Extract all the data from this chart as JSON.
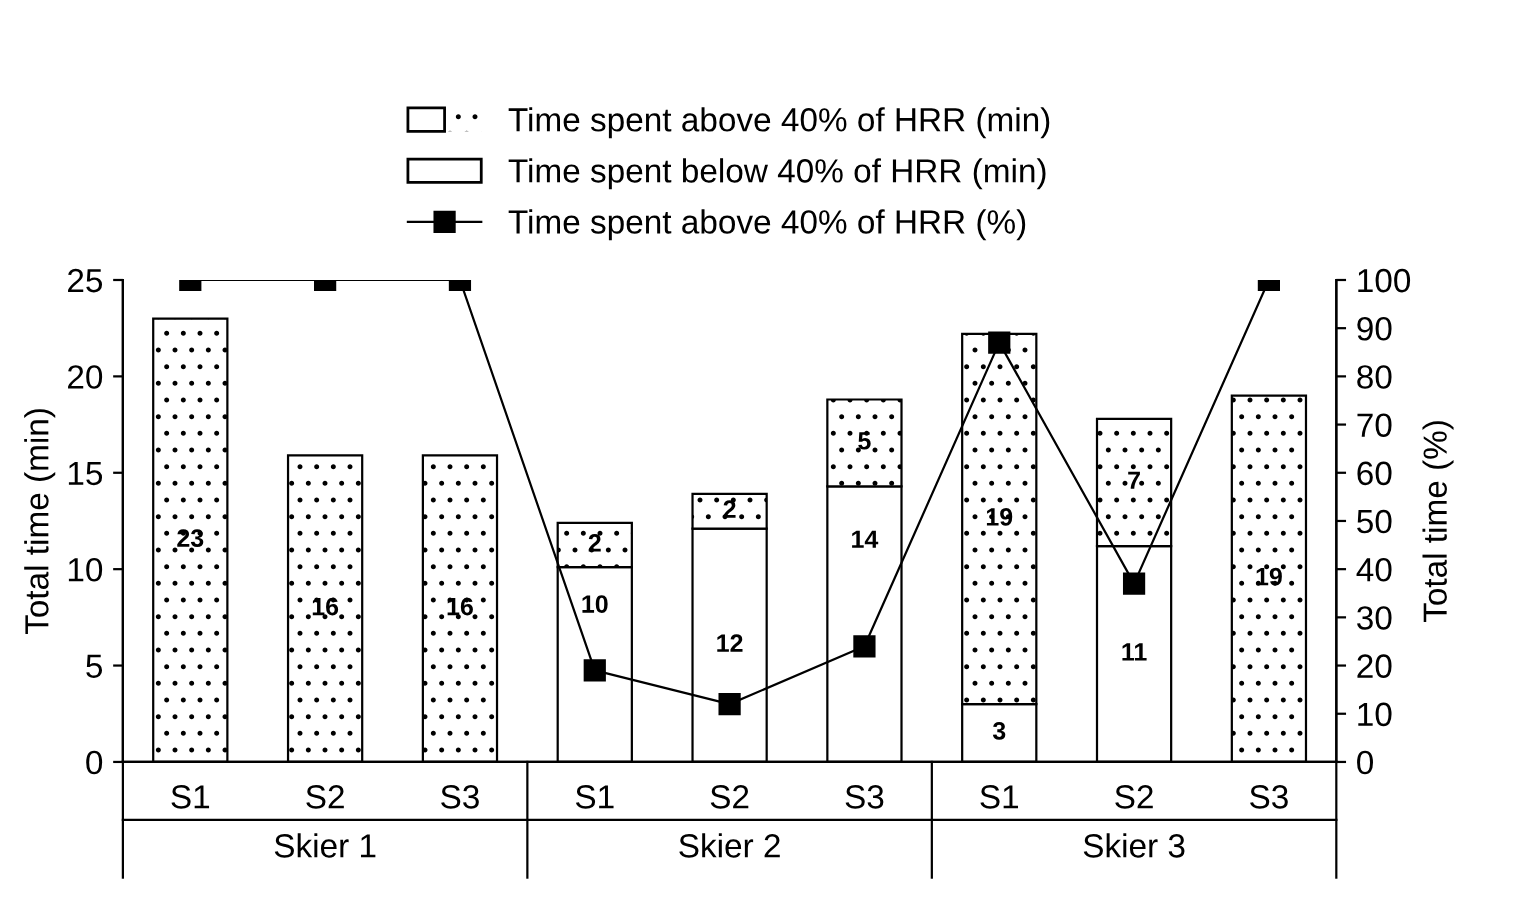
{
  "chart_data": {
    "type": "bar",
    "stacked": true,
    "categories": [
      "S1",
      "S2",
      "S3",
      "S1",
      "S2",
      "S3",
      "S1",
      "S2",
      "S3"
    ],
    "series": [
      {
        "name": "Time spent below 40% of HRR (min)",
        "color": "#ffffff",
        "values": [
          null,
          null,
          null,
          10.1,
          12.1,
          14.3,
          3.0,
          11.2,
          null
        ],
        "value_labels": [
          null,
          null,
          null,
          "10",
          "12",
          "14",
          "3",
          "11",
          null
        ]
      },
      {
        "name": "Time spent above 40% of HRR (min)",
        "color": "#ffffff",
        "values": [
          23.0,
          15.9,
          15.9,
          2.3,
          1.8,
          4.5,
          19.2,
          6.6,
          19.0
        ],
        "value_labels": [
          "23",
          "16",
          "16",
          "2",
          "2",
          "5",
          "19",
          "7",
          "19"
        ]
      },
      {
        "name": "Time spent above 40% of HRR (%)",
        "type": "line",
        "axis": "y2",
        "color": "#000000",
        "marker": "square",
        "values": [
          100,
          100,
          100,
          19,
          12,
          24,
          87,
          37,
          100
        ]
      }
    ],
    "ylabel": "Total time (min)",
    "y2label": "Total time (%)",
    "ylim": [
      0,
      25
    ],
    "yticks": [
      0,
      5,
      10,
      15,
      20,
      25
    ],
    "y2lim": [
      0,
      100
    ],
    "y2ticks": [
      0,
      10,
      20,
      30,
      40,
      50,
      60,
      70,
      80,
      90,
      100
    ],
    "annotations": [
      "Skier 1",
      "Skier 2",
      "Skier 3"
    ],
    "legend": "top",
    "grid": false
  }
}
